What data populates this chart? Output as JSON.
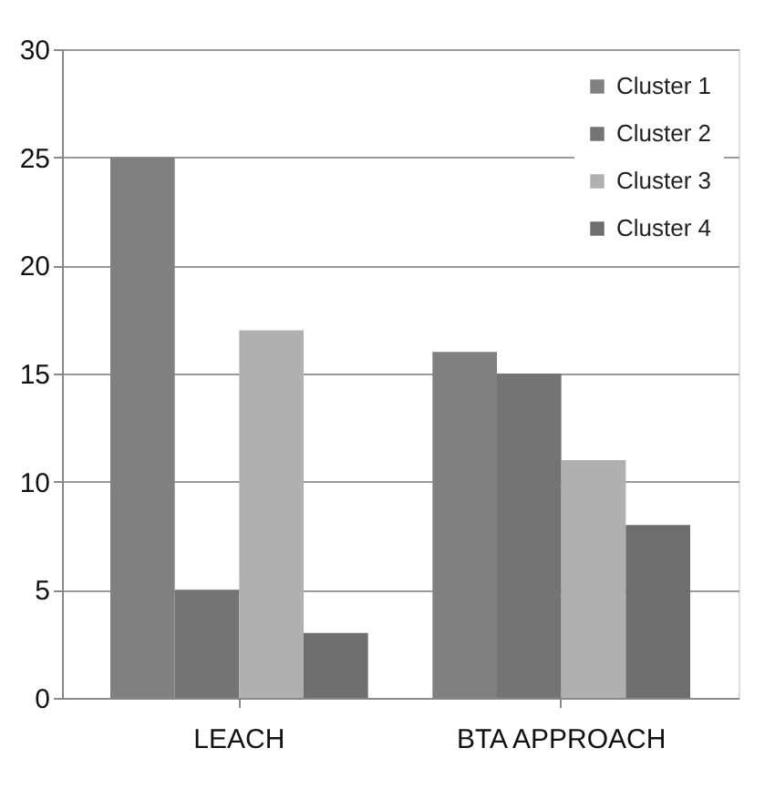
{
  "chart_data": {
    "type": "bar",
    "categories": [
      "LEACH",
      "BTA APPROACH"
    ],
    "series": [
      {
        "name": "Cluster 1",
        "color": "#808080",
        "values": [
          25,
          16
        ]
      },
      {
        "name": "Cluster 2",
        "color": "#747474",
        "values": [
          5,
          15
        ]
      },
      {
        "name": "Cluster 3",
        "color": "#b0b0b0",
        "values": [
          17,
          11
        ]
      },
      {
        "name": "Cluster 4",
        "color": "#6e6e6e",
        "values": [
          3,
          8
        ]
      }
    ],
    "ylim": [
      0,
      30
    ],
    "yticks": [
      0,
      5,
      10,
      15,
      20,
      25,
      30
    ],
    "grid": "y",
    "legend": "top right"
  }
}
